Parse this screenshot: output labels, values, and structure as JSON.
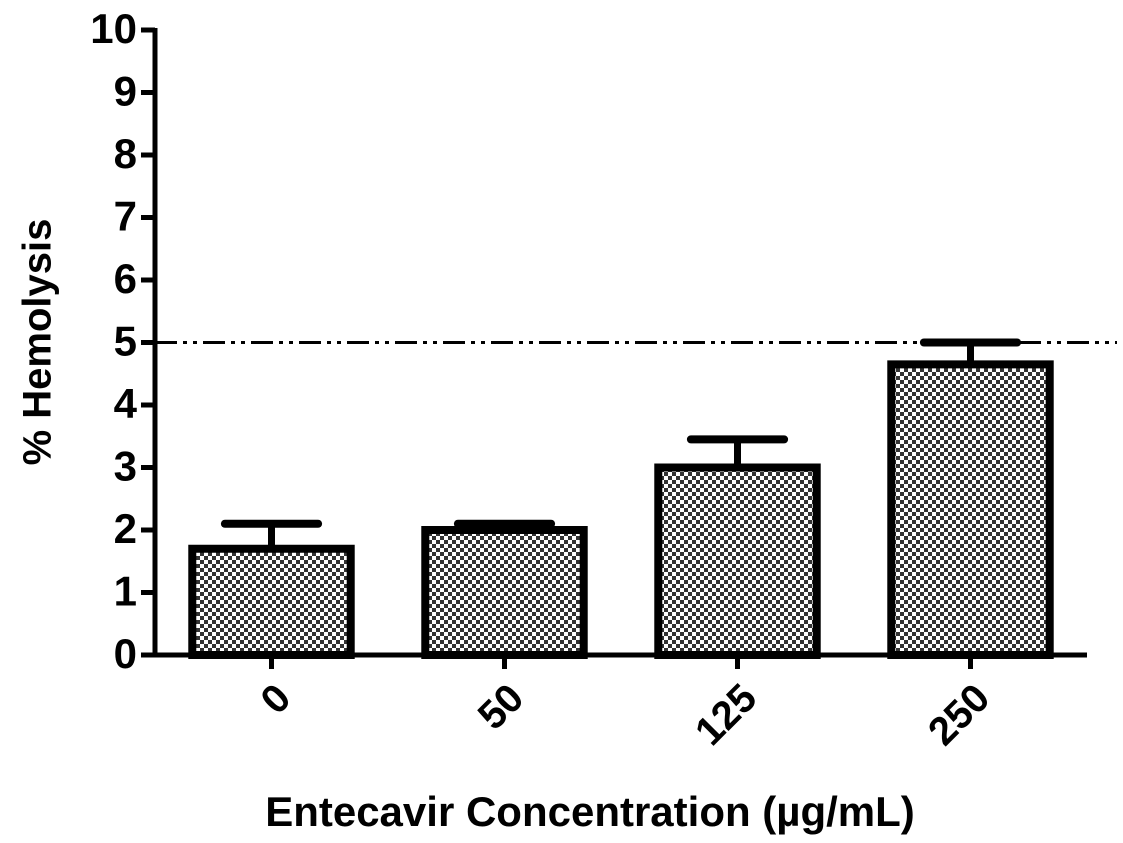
{
  "chart_data": {
    "type": "bar",
    "categories": [
      "0",
      "50",
      "125",
      "250"
    ],
    "values": [
      1.7,
      2.0,
      3.0,
      4.65
    ],
    "errors": [
      0.4,
      0.1,
      0.45,
      0.35
    ],
    "color": "#000000",
    "reference_line": 5,
    "ylim": [
      0,
      10
    ],
    "yticks": [
      0,
      1,
      2,
      3,
      4,
      5,
      6,
      7,
      8,
      9,
      10
    ],
    "xlabel": "Entecavir Concentration (µg/mL)",
    "ylabel": "% Hemolysis"
  }
}
